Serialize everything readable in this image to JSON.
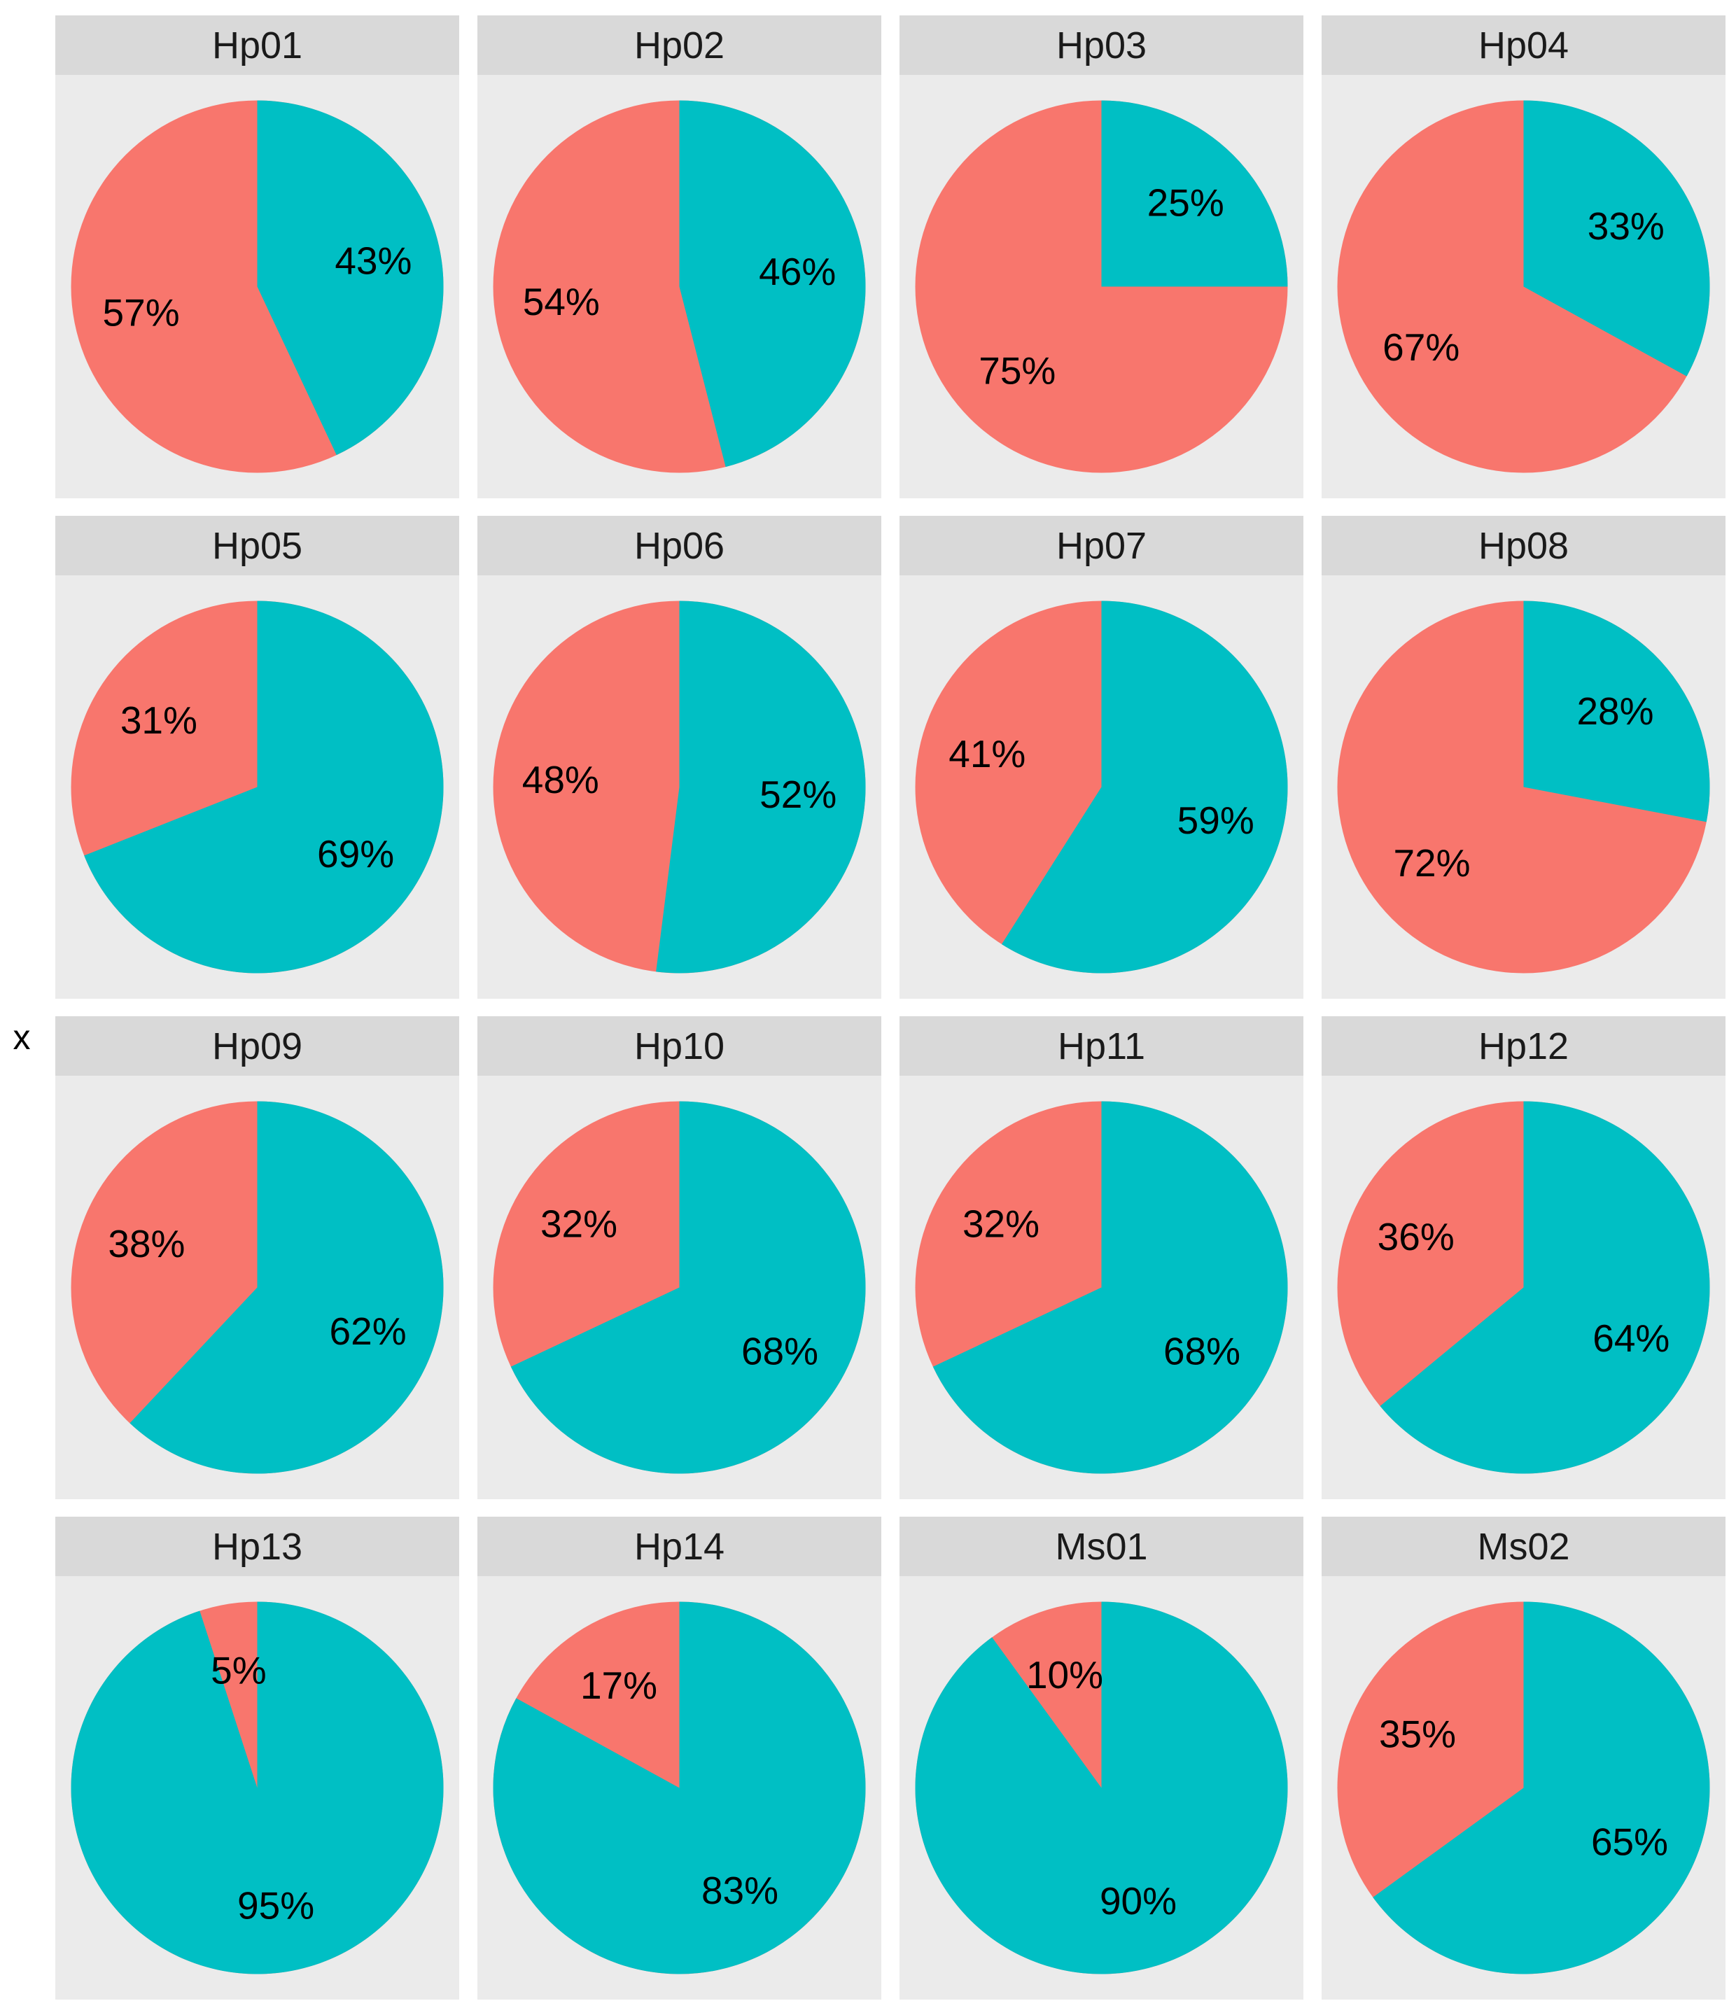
{
  "figure": {
    "background": "#FFFFFF",
    "y_axis_title": "x"
  },
  "style": {
    "strip_background": "#D9D9D9",
    "panel_background": "#EBEBEB",
    "strip_text_color": "#1A1A1A",
    "label_text_color": "#000000",
    "red": "#F8766D",
    "teal": "#00BFC4"
  },
  "chart_data": {
    "type": "pie",
    "layout": "facet-grid-4x4",
    "direction": "clockwise",
    "start_angle": "12-oclock",
    "slice_order": [
      "teal",
      "red"
    ],
    "colors": {
      "teal": "#00BFC4",
      "red": "#F8766D"
    },
    "legend": "none",
    "y_axis_title": "x",
    "facets": [
      {
        "label": "Hp01",
        "slices": [
          {
            "name": "teal",
            "pct": 43,
            "label": "43%"
          },
          {
            "name": "red",
            "pct": 57,
            "label": "57%"
          }
        ]
      },
      {
        "label": "Hp02",
        "slices": [
          {
            "name": "teal",
            "pct": 46,
            "label": "46%"
          },
          {
            "name": "red",
            "pct": 54,
            "label": "54%"
          }
        ]
      },
      {
        "label": "Hp03",
        "slices": [
          {
            "name": "teal",
            "pct": 25,
            "label": "25%"
          },
          {
            "name": "red",
            "pct": 75,
            "label": "75%"
          }
        ]
      },
      {
        "label": "Hp04",
        "slices": [
          {
            "name": "teal",
            "pct": 33,
            "label": "33%"
          },
          {
            "name": "red",
            "pct": 67,
            "label": "67%"
          }
        ]
      },
      {
        "label": "Hp05",
        "slices": [
          {
            "name": "teal",
            "pct": 69,
            "label": "69%"
          },
          {
            "name": "red",
            "pct": 31,
            "label": "31%"
          }
        ]
      },
      {
        "label": "Hp06",
        "slices": [
          {
            "name": "teal",
            "pct": 52,
            "label": "52%"
          },
          {
            "name": "red",
            "pct": 48,
            "label": "48%"
          }
        ]
      },
      {
        "label": "Hp07",
        "slices": [
          {
            "name": "teal",
            "pct": 59,
            "label": "59%"
          },
          {
            "name": "red",
            "pct": 41,
            "label": "41%"
          }
        ]
      },
      {
        "label": "Hp08",
        "slices": [
          {
            "name": "teal",
            "pct": 28,
            "label": "28%"
          },
          {
            "name": "red",
            "pct": 72,
            "label": "72%"
          }
        ]
      },
      {
        "label": "Hp09",
        "slices": [
          {
            "name": "teal",
            "pct": 62,
            "label": "62%"
          },
          {
            "name": "red",
            "pct": 38,
            "label": "38%"
          }
        ]
      },
      {
        "label": "Hp10",
        "slices": [
          {
            "name": "teal",
            "pct": 68,
            "label": "68%"
          },
          {
            "name": "red",
            "pct": 32,
            "label": "32%"
          }
        ]
      },
      {
        "label": "Hp11",
        "slices": [
          {
            "name": "teal",
            "pct": 68,
            "label": "68%"
          },
          {
            "name": "red",
            "pct": 32,
            "label": "32%"
          }
        ]
      },
      {
        "label": "Hp12",
        "slices": [
          {
            "name": "teal",
            "pct": 64,
            "label": "64%"
          },
          {
            "name": "red",
            "pct": 36,
            "label": "36%"
          }
        ]
      },
      {
        "label": "Hp13",
        "slices": [
          {
            "name": "teal",
            "pct": 95,
            "label": "95%"
          },
          {
            "name": "red",
            "pct": 5,
            "label": "5%"
          }
        ]
      },
      {
        "label": "Hp14",
        "slices": [
          {
            "name": "teal",
            "pct": 83,
            "label": "83%"
          },
          {
            "name": "red",
            "pct": 17,
            "label": "17%"
          }
        ]
      },
      {
        "label": "Ms01",
        "slices": [
          {
            "name": "teal",
            "pct": 90,
            "label": "90%"
          },
          {
            "name": "red",
            "pct": 10,
            "label": "10%"
          }
        ]
      },
      {
        "label": "Ms02",
        "slices": [
          {
            "name": "teal",
            "pct": 65,
            "label": "65%"
          },
          {
            "name": "red",
            "pct": 35,
            "label": "35%"
          }
        ]
      }
    ]
  }
}
